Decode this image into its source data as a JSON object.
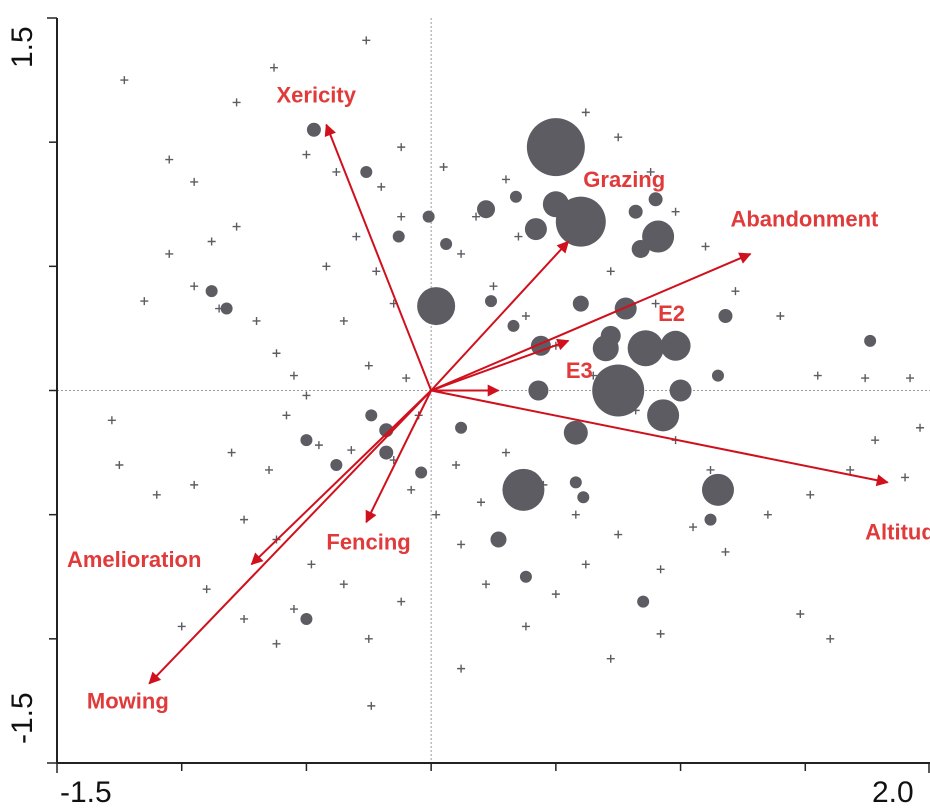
{
  "chart_data": {
    "type": "scatter",
    "title": "",
    "xlabel": "",
    "ylabel": "",
    "xlim": [
      -1.5,
      2.0
    ],
    "ylim": [
      -1.5,
      1.5
    ],
    "x_tick_labels": [
      "-1.5",
      "2.0"
    ],
    "y_tick_labels": [
      "1.5",
      "-1.5"
    ],
    "x_minor_ticks": [
      -1.0,
      -0.5,
      0.0,
      0.5,
      1.0,
      1.5
    ],
    "y_minor_ticks": [
      -1.0,
      -0.5,
      0.0,
      0.5,
      1.0
    ],
    "zero_lines": true,
    "colors": {
      "points": "#5c5c62",
      "arrows": "#d0101c",
      "labels": "#e03a3a",
      "axis": "#222222",
      "zero": "#9a9a9a"
    },
    "arrows": [
      {
        "name": "Xericity",
        "x": -0.42,
        "y": 1.07,
        "label_x": -0.62,
        "label_y": 1.16
      },
      {
        "name": "Grazing",
        "x": 0.55,
        "y": 0.6,
        "label_x": 0.61,
        "label_y": 0.82
      },
      {
        "name": "Abandonment",
        "x": 1.28,
        "y": 0.55,
        "label_x": 1.2,
        "label_y": 0.66
      },
      {
        "name": "E2",
        "x": 0.55,
        "y": 0.2,
        "label_x": 0.91,
        "label_y": 0.28
      },
      {
        "name": "E3",
        "x": 0.27,
        "y": 0.0,
        "label_x": 0.54,
        "label_y": 0.05
      },
      {
        "name": "Altitude",
        "x": 1.83,
        "y": -0.37,
        "label_x": 1.74,
        "label_y": -0.6
      },
      {
        "name": "Fencing",
        "x": -0.26,
        "y": -0.53,
        "label_x": -0.42,
        "label_y": -0.64
      },
      {
        "name": "Amelioration",
        "x": -0.72,
        "y": -0.7,
        "label_x": -1.46,
        "label_y": -0.71
      },
      {
        "name": "Mowing",
        "x": -1.13,
        "y": -1.18,
        "label_x": -1.38,
        "label_y": -1.28
      }
    ],
    "samples": [
      {
        "x": -1.23,
        "y": 1.25
      },
      {
        "x": -0.78,
        "y": 1.16
      },
      {
        "x": -0.63,
        "y": 1.3
      },
      {
        "x": -0.26,
        "y": 1.41
      },
      {
        "x": -1.05,
        "y": 0.93
      },
      {
        "x": -0.95,
        "y": 0.84
      },
      {
        "x": -0.78,
        "y": 0.66
      },
      {
        "x": -0.88,
        "y": 0.6
      },
      {
        "x": -1.05,
        "y": 0.55
      },
      {
        "x": -0.95,
        "y": 0.42
      },
      {
        "x": -1.15,
        "y": 0.36
      },
      {
        "x": -0.85,
        "y": 0.33
      },
      {
        "x": -0.7,
        "y": 0.28
      },
      {
        "x": -0.62,
        "y": 0.15
      },
      {
        "x": -0.55,
        "y": 0.06
      },
      {
        "x": -0.5,
        "y": -0.02
      },
      {
        "x": -0.58,
        "y": -0.1
      },
      {
        "x": -0.45,
        "y": -0.22
      },
      {
        "x": -0.32,
        "y": -0.24
      },
      {
        "x": -0.65,
        "y": -0.32
      },
      {
        "x": -0.8,
        "y": -0.25
      },
      {
        "x": -0.95,
        "y": -0.38
      },
      {
        "x": -1.1,
        "y": -0.42
      },
      {
        "x": -1.25,
        "y": -0.3
      },
      {
        "x": -1.28,
        "y": -0.12
      },
      {
        "x": -0.75,
        "y": -0.52
      },
      {
        "x": -0.62,
        "y": -0.6
      },
      {
        "x": -0.48,
        "y": -0.7
      },
      {
        "x": -0.35,
        "y": -0.78
      },
      {
        "x": -0.55,
        "y": -0.88
      },
      {
        "x": -0.75,
        "y": -0.92
      },
      {
        "x": -0.9,
        "y": -0.8
      },
      {
        "x": -1.0,
        "y": -0.95
      },
      {
        "x": -0.62,
        "y": -1.02
      },
      {
        "x": -0.25,
        "y": -1.0
      },
      {
        "x": -0.24,
        "y": -1.27
      },
      {
        "x": -0.5,
        "y": 0.95
      },
      {
        "x": -0.38,
        "y": 0.88
      },
      {
        "x": -0.2,
        "y": 0.82
      },
      {
        "x": -0.12,
        "y": 0.7
      },
      {
        "x": -0.3,
        "y": 0.62
      },
      {
        "x": -0.42,
        "y": 0.5
      },
      {
        "x": -0.22,
        "y": 0.48
      },
      {
        "x": -0.15,
        "y": 0.35
      },
      {
        "x": -0.35,
        "y": 0.28
      },
      {
        "x": -0.25,
        "y": 0.1
      },
      {
        "x": -0.1,
        "y": 0.05
      },
      {
        "x": -0.05,
        "y": -0.1
      },
      {
        "x": -0.15,
        "y": -0.28
      },
      {
        "x": -0.08,
        "y": -0.4
      },
      {
        "x": 0.02,
        "y": -0.5
      },
      {
        "x": 0.12,
        "y": -0.62
      },
      {
        "x": 0.22,
        "y": -0.78
      },
      {
        "x": 0.38,
        "y": -0.95
      },
      {
        "x": 0.5,
        "y": -0.82
      },
      {
        "x": 0.62,
        "y": -0.7
      },
      {
        "x": 0.75,
        "y": -0.58
      },
      {
        "x": 0.92,
        "y": -0.72
      },
      {
        "x": 1.05,
        "y": -0.55
      },
      {
        "x": 1.18,
        "y": -0.65
      },
      {
        "x": 1.35,
        "y": -0.5
      },
      {
        "x": 1.52,
        "y": -0.42
      },
      {
        "x": 1.68,
        "y": -0.32
      },
      {
        "x": 1.78,
        "y": -0.2
      },
      {
        "x": 1.9,
        "y": -0.35
      },
      {
        "x": 1.96,
        "y": -0.15
      },
      {
        "x": 1.92,
        "y": 0.05
      },
      {
        "x": 1.74,
        "y": 0.05
      },
      {
        "x": 1.55,
        "y": 0.06
      },
      {
        "x": 1.4,
        "y": 0.3
      },
      {
        "x": 1.22,
        "y": 0.4
      },
      {
        "x": 1.1,
        "y": 0.58
      },
      {
        "x": 0.98,
        "y": 0.72
      },
      {
        "x": 0.88,
        "y": 0.88
      },
      {
        "x": 0.75,
        "y": 1.02
      },
      {
        "x": 0.62,
        "y": 1.12
      },
      {
        "x": 0.45,
        "y": 1.0
      },
      {
        "x": 0.3,
        "y": 0.85
      },
      {
        "x": 0.18,
        "y": 0.7
      },
      {
        "x": 0.12,
        "y": 0.55
      },
      {
        "x": 0.25,
        "y": 0.42
      },
      {
        "x": 0.38,
        "y": 0.3
      },
      {
        "x": 0.5,
        "y": 0.18
      },
      {
        "x": 0.65,
        "y": 0.06
      },
      {
        "x": 0.82,
        "y": -0.08
      },
      {
        "x": 0.98,
        "y": -0.2
      },
      {
        "x": 1.12,
        "y": -0.32
      },
      {
        "x": 0.3,
        "y": -0.25
      },
      {
        "x": 0.45,
        "y": -0.38
      },
      {
        "x": 0.58,
        "y": -0.5
      },
      {
        "x": 0.2,
        "y": -0.45
      },
      {
        "x": 0.1,
        "y": -0.3
      },
      {
        "x": 0.35,
        "y": 0.62
      },
      {
        "x": 0.05,
        "y": 0.9
      },
      {
        "x": -0.12,
        "y": 0.98
      },
      {
        "x": 0.52,
        "y": 0.75
      },
      {
        "x": 0.72,
        "y": 0.48
      },
      {
        "x": 0.9,
        "y": 0.35
      },
      {
        "x": 1.6,
        "y": -1.0
      },
      {
        "x": 1.48,
        "y": -0.9
      },
      {
        "x": 0.92,
        "y": -0.98
      },
      {
        "x": 0.72,
        "y": -1.08
      },
      {
        "x": 0.12,
        "y": -1.12
      },
      {
        "x": -0.12,
        "y": -0.85
      }
    ],
    "sites": [
      {
        "x": 0.5,
        "y": 0.98,
        "r": 29
      },
      {
        "x": 0.6,
        "y": 0.68,
        "r": 25
      },
      {
        "x": 0.02,
        "y": 0.34,
        "r": 19
      },
      {
        "x": 0.75,
        "y": 0.0,
        "r": 26
      },
      {
        "x": 0.86,
        "y": 0.17,
        "r": 18
      },
      {
        "x": 0.98,
        "y": 0.18,
        "r": 15
      },
      {
        "x": 0.7,
        "y": 0.17,
        "r": 13
      },
      {
        "x": 0.37,
        "y": -0.4,
        "r": 21
      },
      {
        "x": 1.15,
        "y": -0.4,
        "r": 16
      },
      {
        "x": 0.93,
        "y": -0.1,
        "r": 16
      },
      {
        "x": 0.91,
        "y": 0.62,
        "r": 16
      },
      {
        "x": 0.5,
        "y": 0.75,
        "r": 13
      },
      {
        "x": 0.42,
        "y": 0.65,
        "r": 11
      },
      {
        "x": 0.22,
        "y": 0.73,
        "r": 9
      },
      {
        "x": 0.44,
        "y": 0.18,
        "r": 10
      },
      {
        "x": 0.43,
        "y": 0.0,
        "r": 10
      },
      {
        "x": 0.58,
        "y": -0.17,
        "r": 12
      },
      {
        "x": 0.78,
        "y": 0.33,
        "r": 11
      },
      {
        "x": 0.6,
        "y": 0.35,
        "r": 8
      },
      {
        "x": 1.0,
        "y": 0.0,
        "r": 11
      },
      {
        "x": 0.72,
        "y": 0.22,
        "r": 10
      },
      {
        "x": 0.84,
        "y": 0.57,
        "r": 9
      },
      {
        "x": 0.82,
        "y": 0.72,
        "r": 7
      },
      {
        "x": 0.9,
        "y": 0.77,
        "r": 7
      },
      {
        "x": -0.47,
        "y": 1.05,
        "r": 7
      },
      {
        "x": -0.26,
        "y": 0.88,
        "r": 6
      },
      {
        "x": -0.13,
        "y": 0.62,
        "r": 6
      },
      {
        "x": -0.88,
        "y": 0.4,
        "r": 6
      },
      {
        "x": -0.82,
        "y": 0.33,
        "r": 6
      },
      {
        "x": -0.01,
        "y": 0.7,
        "r": 6
      },
      {
        "x": 0.24,
        "y": 0.36,
        "r": 6
      },
      {
        "x": 0.34,
        "y": 0.78,
        "r": 6
      },
      {
        "x": 1.18,
        "y": 0.3,
        "r": 7
      },
      {
        "x": 1.76,
        "y": 0.2,
        "r": 6
      },
      {
        "x": 1.15,
        "y": 0.06,
        "r": 6
      },
      {
        "x": 1.12,
        "y": -0.52,
        "r": 6
      },
      {
        "x": 0.85,
        "y": -0.85,
        "r": 6
      },
      {
        "x": 0.38,
        "y": -0.75,
        "r": 6
      },
      {
        "x": 0.27,
        "y": -0.6,
        "r": 8
      },
      {
        "x": -0.24,
        "y": -0.1,
        "r": 6
      },
      {
        "x": -0.5,
        "y": -0.2,
        "r": 6
      },
      {
        "x": -0.18,
        "y": -0.25,
        "r": 7
      },
      {
        "x": -0.18,
        "y": -0.16,
        "r": 7
      },
      {
        "x": -0.38,
        "y": -0.3,
        "r": 6
      },
      {
        "x": -0.5,
        "y": -0.92,
        "r": 6
      },
      {
        "x": 0.12,
        "y": -0.15,
        "r": 6
      },
      {
        "x": 0.58,
        "y": -0.37,
        "r": 6
      },
      {
        "x": 0.61,
        "y": -0.43,
        "r": 6
      },
      {
        "x": 0.33,
        "y": 0.26,
        "r": 6
      },
      {
        "x": 0.06,
        "y": 0.59,
        "r": 6
      },
      {
        "x": -0.04,
        "y": -0.33,
        "r": 6
      }
    ]
  }
}
